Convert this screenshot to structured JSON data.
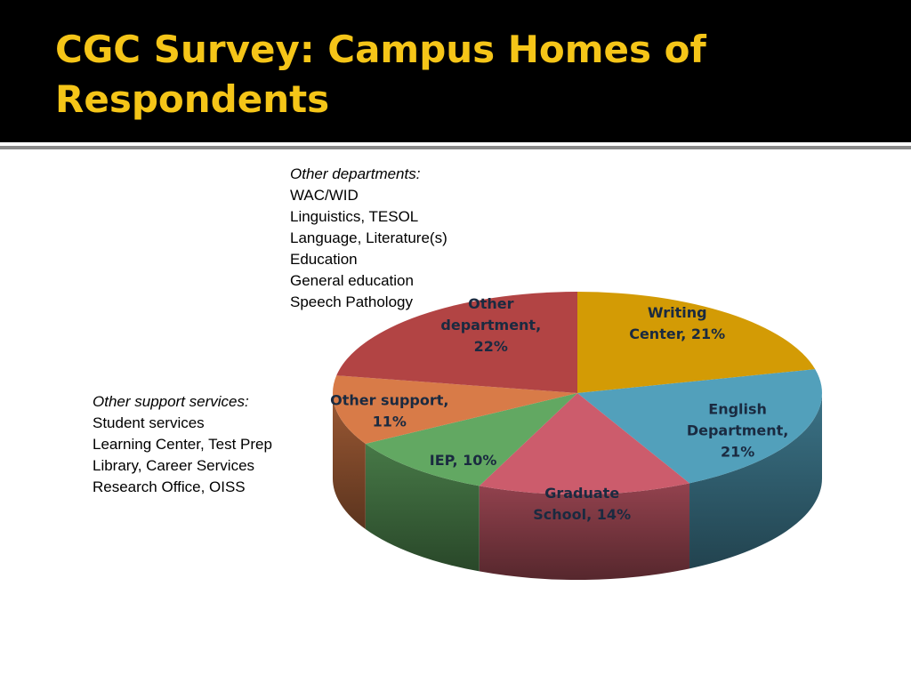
{
  "slide": {
    "title": "CGC Survey: Campus Homes of Respondents"
  },
  "notes": {
    "departments": {
      "heading": "Other departments:",
      "items": [
        "WAC/WID",
        "Linguistics, TESOL",
        "Language, Literature(s)",
        "Education",
        "General education",
        "Speech Pathology"
      ]
    },
    "support": {
      "heading": "Other support services:",
      "items": [
        "Student services",
        "Learning Center, Test Prep",
        "Library, Career Services",
        "Research Office, OISS"
      ]
    }
  },
  "chart_data": {
    "type": "pie",
    "style": "3d",
    "title": "",
    "slices": [
      {
        "label_lines": [
          "Writing",
          "Center, 21%"
        ],
        "category": "Writing Center",
        "value": 21,
        "color": "#d39b05"
      },
      {
        "label_lines": [
          "English",
          "Department,",
          "21%"
        ],
        "category": "English Department",
        "value": 21,
        "color": "#52a0bb"
      },
      {
        "label_lines": [
          "Graduate",
          "School, 14%"
        ],
        "category": "Graduate School",
        "value": 14,
        "color": "#cc5c6c"
      },
      {
        "label_lines": [
          "IEP, 10%"
        ],
        "category": "IEP",
        "value": 10,
        "color": "#62a862"
      },
      {
        "label_lines": [
          "Other support,",
          "11%"
        ],
        "category": "Other support",
        "value": 11,
        "color": "#d87b48"
      },
      {
        "label_lines": [
          "Other",
          "department,",
          "22%"
        ],
        "category": "Other department",
        "value": 22,
        "color": "#b24444"
      }
    ]
  }
}
